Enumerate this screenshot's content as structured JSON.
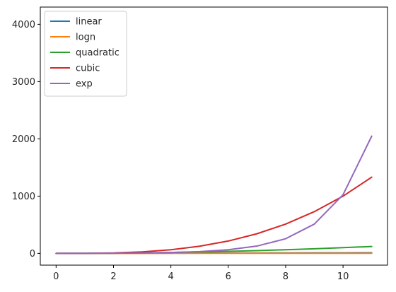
{
  "chart_data": {
    "type": "line",
    "title": "",
    "xlabel": "",
    "ylabel": "",
    "x": [
      0,
      1,
      2,
      3,
      4,
      5,
      6,
      7,
      8,
      9,
      10,
      11
    ],
    "xlim": [
      -0.55,
      11.55
    ],
    "ylim": [
      -204.8,
      4300.8
    ],
    "xticks": [
      0,
      2,
      4,
      6,
      8,
      10
    ],
    "yticks": [
      0,
      1000,
      2000,
      3000,
      4000
    ],
    "grid": false,
    "legend_position": "top-left",
    "series": [
      {
        "name": "linear",
        "color": "#1f77b4",
        "values": [
          0,
          1,
          2,
          3,
          4,
          5,
          6,
          7,
          8,
          9,
          10,
          11
        ]
      },
      {
        "name": "logn",
        "color": "#ff7f0e",
        "values": [
          0,
          0,
          0.69,
          1.1,
          1.39,
          1.61,
          1.79,
          1.95,
          2.08,
          2.2,
          2.3,
          2.4
        ]
      },
      {
        "name": "quadratic",
        "color": "#2ca02c",
        "values": [
          0,
          1,
          4,
          9,
          16,
          25,
          36,
          49,
          64,
          81,
          100,
          121
        ]
      },
      {
        "name": "cubic",
        "color": "#d62728",
        "values": [
          0,
          1,
          8,
          27,
          64,
          125,
          216,
          343,
          512,
          729,
          1000,
          1331
        ]
      },
      {
        "name": "exp",
        "color": "#9467bd",
        "values": [
          1,
          2,
          4,
          8,
          16,
          32,
          64,
          128,
          256,
          512,
          1024,
          2048
        ]
      }
    ]
  }
}
